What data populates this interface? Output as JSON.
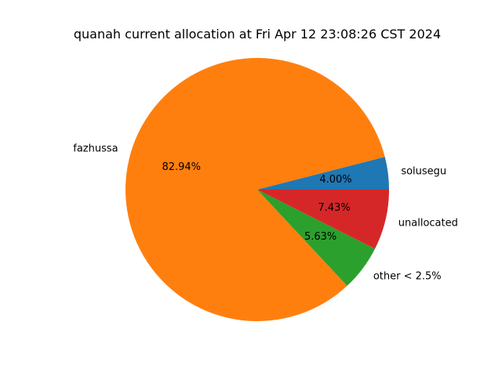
{
  "chart_data": {
    "type": "pie",
    "title": "quanah current allocation at Fri Apr 12 23:08:26 CST 2024",
    "start_angle_deg": 0,
    "direction": "counterclockwise",
    "slices": [
      {
        "label": "solusegu",
        "value": 4.0,
        "pct_text": "4.00%",
        "color": "#1f77b4"
      },
      {
        "label": "fazhussa",
        "value": 82.94,
        "pct_text": "82.94%",
        "color": "#ff7f0e"
      },
      {
        "label": "other < 2.5%",
        "value": 5.63,
        "pct_text": "5.63%",
        "color": "#2ca02c"
      },
      {
        "label": "unallocated",
        "value": 7.43,
        "pct_text": "7.43%",
        "color": "#d62728"
      }
    ]
  }
}
